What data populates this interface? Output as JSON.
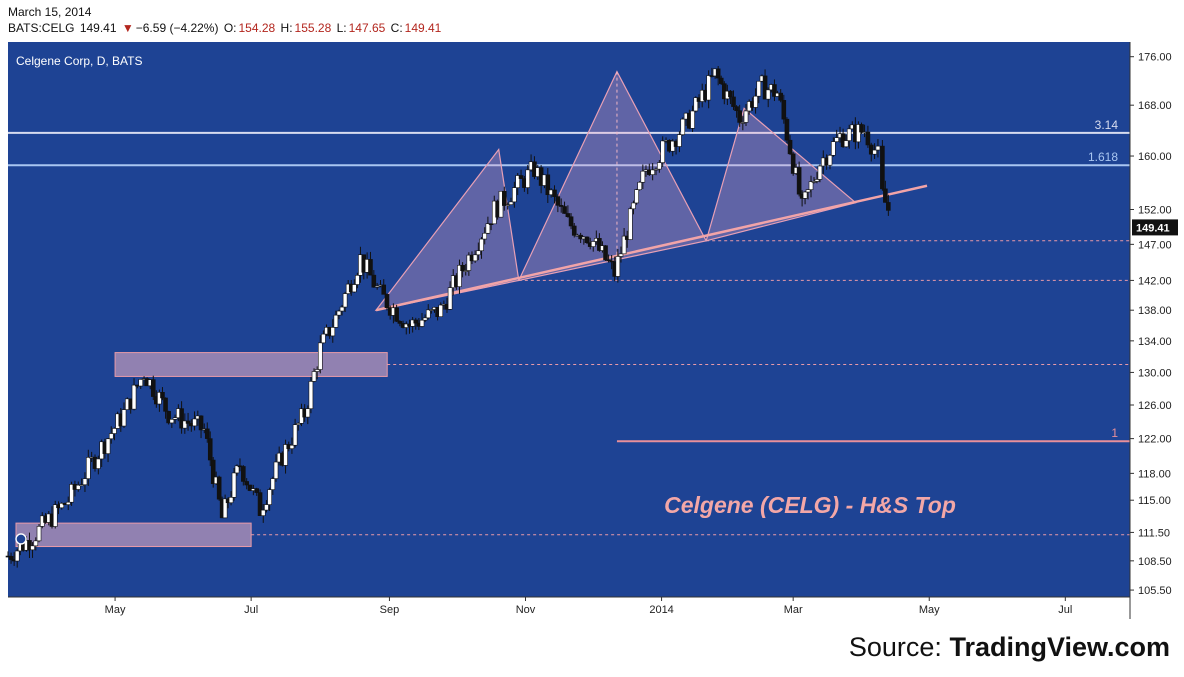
{
  "header": {
    "date": "March 15, 2014",
    "symbol": "BATS:CELG",
    "last": "149.41",
    "change": "−6.59 (−4.22%)",
    "o_label": "O:",
    "o": "154.28",
    "h_label": "H:",
    "h": "155.28",
    "l_label": "L:",
    "l": "147.65",
    "c_label": "C:",
    "c": "149.41"
  },
  "source": {
    "prefix": "Source: ",
    "name": "TradingView.com"
  },
  "chart_data": {
    "type": "candlestick",
    "title": "Celgene Corp, D, BATS",
    "annotation": "Celgene (CELG) - H&S Top",
    "y_ticks": [
      "105.50",
      "108.50",
      "111.50",
      "115.00",
      "118.00",
      "122.00",
      "126.00",
      "130.00",
      "134.00",
      "138.00",
      "142.00",
      "147.00",
      "152.00",
      "160.00",
      "168.00",
      "176.00"
    ],
    "x_ticks": [
      "May",
      "Jul",
      "Sep",
      "Nov",
      "2014",
      "Mar",
      "May",
      "Jul"
    ],
    "last_price_label": "149.41",
    "fib_levels": [
      {
        "label": "3.14",
        "value": 163.6
      },
      {
        "label": "1.618",
        "value": 158.6
      },
      {
        "label": "1",
        "value": 121.7
      }
    ],
    "support_zones": [
      {
        "y_low": 129.5,
        "y_high": 132.5,
        "x_start": "2013-05-01",
        "x_end": "2013-08-31"
      },
      {
        "y_low": 110.0,
        "y_high": 112.5,
        "x_start": "2013-03-14",
        "x_end": "2013-07-01"
      }
    ],
    "neckline": {
      "from": [
        "2013-08-26",
        138.0
      ],
      "to": [
        "2014-04-30",
        155.5
      ]
    },
    "head_and_shoulders": [
      [
        [
          "2013-08-26",
          138.0
        ],
        [
          "2013-10-20",
          161.0
        ],
        [
          "2013-10-29",
          142.0
        ]
      ],
      [
        [
          "2013-10-29",
          142.0
        ],
        [
          "2013-12-12",
          173.5
        ],
        [
          "2014-01-21",
          147.5
        ]
      ],
      [
        [
          "2014-01-21",
          147.5
        ],
        [
          "2014-02-07",
          167.5
        ],
        [
          "2014-03-29",
          153.0
        ]
      ]
    ],
    "x_range": [
      "2013-03-14",
      "2014-07-30"
    ],
    "y_scale": "log",
    "y_range": [
      104.8,
      178.5
    ]
  }
}
